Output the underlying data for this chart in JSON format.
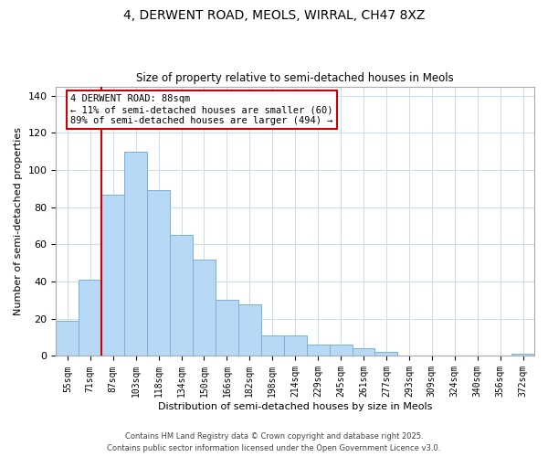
{
  "title_line1": "4, DERWENT ROAD, MEOLS, WIRRAL, CH47 8XZ",
  "title_line2": "Size of property relative to semi-detached houses in Meols",
  "xlabel": "Distribution of semi-detached houses by size in Meols",
  "ylabel": "Number of semi-detached properties",
  "bar_labels": [
    "55sqm",
    "71sqm",
    "87sqm",
    "103sqm",
    "118sqm",
    "134sqm",
    "150sqm",
    "166sqm",
    "182sqm",
    "198sqm",
    "214sqm",
    "229sqm",
    "245sqm",
    "261sqm",
    "277sqm",
    "293sqm",
    "309sqm",
    "324sqm",
    "340sqm",
    "356sqm",
    "372sqm"
  ],
  "bar_values": [
    19,
    41,
    87,
    110,
    89,
    65,
    52,
    30,
    28,
    11,
    11,
    6,
    6,
    4,
    2,
    0,
    0,
    0,
    0,
    0,
    1
  ],
  "bar_color": "#b8d9f5",
  "bar_edge_color": "#7ab0d9",
  "vline_index": 2,
  "vline_color": "#cc0000",
  "annotation_box_edge": "#cc0000",
  "annotation_line1": "4 DERWENT ROAD: 88sqm",
  "annotation_line2": "← 11% of semi-detached houses are smaller (60)",
  "annotation_line3": "89% of semi-detached houses are larger (494) →",
  "ylim": [
    0,
    145
  ],
  "yticks": [
    0,
    20,
    40,
    60,
    80,
    100,
    120,
    140
  ],
  "footer_line1": "Contains HM Land Registry data © Crown copyright and database right 2025.",
  "footer_line2": "Contains public sector information licensed under the Open Government Licence v3.0.",
  "background_color": "#ffffff",
  "grid_color": "#ccdded"
}
